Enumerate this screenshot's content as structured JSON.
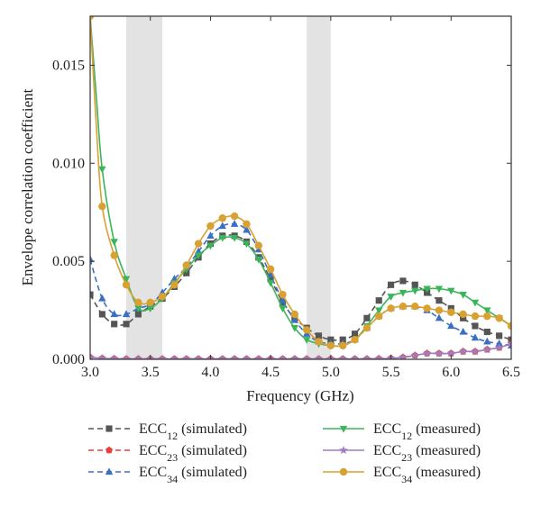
{
  "chart_data": {
    "type": "line",
    "xlabel": "Frequency (GHz)",
    "ylabel": "Envelope correlation coefficient",
    "xlim": [
      3.0,
      6.5
    ],
    "ylim": [
      0.0,
      0.0175
    ],
    "x_ticks": [
      3.0,
      3.5,
      4.0,
      4.5,
      5.0,
      5.5,
      6.0,
      6.5
    ],
    "x_tick_labels": [
      "3.0",
      "3.5",
      "4.0",
      "4.5",
      "5.0",
      "5.5",
      "6.0",
      "6.5"
    ],
    "y_ticks": [
      0.0,
      0.005,
      0.01,
      0.015
    ],
    "y_tick_labels": [
      "0.000",
      "0.005",
      "0.010",
      "0.015"
    ],
    "shaded_bands": [
      [
        3.3,
        3.6
      ],
      [
        4.8,
        5.0
      ]
    ],
    "legend_position": "bottom",
    "series": [
      {
        "name": "ECC12 (simulated)",
        "legend_base": "ECC",
        "legend_sub": "12",
        "legend_suffix": " (simulated)",
        "color": "#555555",
        "marker": "square",
        "dashed": true,
        "x": [
          3.0,
          3.1,
          3.2,
          3.3,
          3.4,
          3.5,
          3.6,
          3.7,
          3.8,
          3.9,
          4.0,
          4.1,
          4.2,
          4.3,
          4.4,
          4.5,
          4.6,
          4.7,
          4.8,
          4.9,
          5.0,
          5.1,
          5.2,
          5.3,
          5.4,
          5.5,
          5.6,
          5.7,
          5.8,
          5.9,
          6.0,
          6.1,
          6.2,
          6.3,
          6.4,
          6.5
        ],
        "y": [
          0.0033,
          0.0023,
          0.0018,
          0.0018,
          0.0023,
          0.0027,
          0.0031,
          0.0037,
          0.0044,
          0.0052,
          0.0059,
          0.0063,
          0.0063,
          0.006,
          0.0052,
          0.0041,
          0.0029,
          0.0021,
          0.0016,
          0.0012,
          0.001,
          0.001,
          0.0013,
          0.0021,
          0.003,
          0.0038,
          0.004,
          0.0038,
          0.0034,
          0.003,
          0.0026,
          0.0021,
          0.0017,
          0.0014,
          0.0012,
          0.001
        ]
      },
      {
        "name": "ECC23 (simulated)",
        "legend_base": "ECC",
        "legend_sub": "23",
        "legend_suffix": " (simulated)",
        "color": "#e8413c",
        "marker": "pentagon",
        "dashed": true,
        "x": [
          3.0,
          3.1,
          3.2,
          3.3,
          3.4,
          3.5,
          3.6,
          3.7,
          3.8,
          3.9,
          4.0,
          4.1,
          4.2,
          4.3,
          4.4,
          4.5,
          4.6,
          4.7,
          4.8,
          4.9,
          5.0,
          5.1,
          5.2,
          5.3,
          5.4,
          5.5,
          5.6,
          5.7,
          5.8,
          5.9,
          6.0,
          6.1,
          6.2,
          6.3,
          6.4,
          6.5
        ],
        "y": [
          0.0001,
          5e-05,
          3e-05,
          2e-05,
          2e-05,
          2e-05,
          2e-05,
          2e-05,
          2e-05,
          2e-05,
          2e-05,
          2e-05,
          2e-05,
          2e-05,
          2e-05,
          2e-05,
          2e-05,
          2e-05,
          2e-05,
          2e-05,
          2e-05,
          2e-05,
          2e-05,
          2e-05,
          3e-05,
          5e-05,
          0.0001,
          0.0002,
          0.0003,
          0.0003,
          0.0003,
          0.0004,
          0.0004,
          0.0005,
          0.0006,
          0.0008
        ]
      },
      {
        "name": "ECC34 (simulated)",
        "legend_base": "ECC",
        "legend_sub": "34",
        "legend_suffix": " (simulated)",
        "color": "#3b6fc4",
        "marker": "triangle-up",
        "dashed": true,
        "x": [
          3.0,
          3.1,
          3.2,
          3.3,
          3.4,
          3.5,
          3.6,
          3.7,
          3.8,
          3.9,
          4.0,
          4.1,
          4.2,
          4.3,
          4.4,
          4.5,
          4.6,
          4.7,
          4.8,
          4.9,
          5.0,
          5.1,
          5.2,
          5.3,
          5.4,
          5.5,
          5.6,
          5.7,
          5.8,
          5.9,
          6.0,
          6.1,
          6.2,
          6.3,
          6.4,
          6.5
        ],
        "y": [
          0.0051,
          0.0031,
          0.0023,
          0.0023,
          0.0026,
          0.0028,
          0.0034,
          0.0041,
          0.0047,
          0.0055,
          0.0063,
          0.0068,
          0.0069,
          0.0066,
          0.0056,
          0.0043,
          0.003,
          0.002,
          0.0013,
          0.0009,
          0.0008,
          0.0008,
          0.001,
          0.0016,
          0.0022,
          0.0026,
          0.0027,
          0.0027,
          0.0025,
          0.0021,
          0.0017,
          0.0014,
          0.0011,
          0.0009,
          0.0008,
          0.0007
        ]
      },
      {
        "name": "ECC12 (measured)",
        "legend_base": "ECC",
        "legend_sub": "12",
        "legend_suffix": " (measured)",
        "color": "#3bb55a",
        "marker": "triangle-down",
        "dashed": false,
        "x": [
          3.0,
          3.05,
          3.1,
          3.2,
          3.3,
          3.4,
          3.5,
          3.6,
          3.7,
          3.8,
          3.9,
          4.0,
          4.1,
          4.2,
          4.3,
          4.4,
          4.5,
          4.6,
          4.7,
          4.8,
          4.9,
          5.0,
          5.1,
          5.2,
          5.3,
          5.4,
          5.5,
          5.6,
          5.7,
          5.8,
          5.9,
          6.0,
          6.1,
          6.2,
          6.3,
          6.4,
          6.5
        ],
        "y": [
          0.0175,
          0.0135,
          0.0097,
          0.006,
          0.0041,
          0.0026,
          0.0026,
          0.0031,
          0.0039,
          0.0046,
          0.0053,
          0.0058,
          0.0062,
          0.0062,
          0.0059,
          0.0051,
          0.0039,
          0.0026,
          0.0016,
          0.001,
          0.0008,
          0.0007,
          0.0007,
          0.001,
          0.0017,
          0.0025,
          0.0032,
          0.0034,
          0.0035,
          0.0036,
          0.0036,
          0.0035,
          0.0033,
          0.0029,
          0.0025,
          0.0021,
          0.0017
        ]
      },
      {
        "name": "ECC23 (measured)",
        "legend_base": "ECC",
        "legend_sub": "23",
        "legend_suffix": " (measured)",
        "color": "#a07cc0",
        "marker": "star",
        "dashed": false,
        "x": [
          3.0,
          3.1,
          3.2,
          3.3,
          3.4,
          3.5,
          3.6,
          3.7,
          3.8,
          3.9,
          4.0,
          4.1,
          4.2,
          4.3,
          4.4,
          4.5,
          4.6,
          4.7,
          4.8,
          4.9,
          5.0,
          5.1,
          5.2,
          5.3,
          5.4,
          5.5,
          5.6,
          5.7,
          5.8,
          5.9,
          6.0,
          6.1,
          6.2,
          6.3,
          6.4,
          6.5
        ],
        "y": [
          0.0001,
          5e-05,
          3e-05,
          2e-05,
          2e-05,
          2e-05,
          2e-05,
          2e-05,
          2e-05,
          2e-05,
          2e-05,
          2e-05,
          2e-05,
          2e-05,
          2e-05,
          2e-05,
          2e-05,
          2e-05,
          2e-05,
          2e-05,
          2e-05,
          2e-05,
          2e-05,
          2e-05,
          3e-05,
          5e-05,
          0.0001,
          0.0002,
          0.0003,
          0.0003,
          0.0003,
          0.0004,
          0.0004,
          0.0005,
          0.0006,
          0.0008
        ]
      },
      {
        "name": "ECC34 (measured)",
        "legend_base": "ECC",
        "legend_sub": "34",
        "legend_suffix": " (measured)",
        "color": "#d9a032",
        "marker": "circle",
        "dashed": false,
        "x": [
          3.0,
          3.05,
          3.1,
          3.2,
          3.3,
          3.4,
          3.5,
          3.6,
          3.7,
          3.8,
          3.9,
          4.0,
          4.1,
          4.2,
          4.3,
          4.4,
          4.5,
          4.6,
          4.7,
          4.8,
          4.9,
          5.0,
          5.1,
          5.2,
          5.3,
          5.4,
          5.5,
          5.6,
          5.7,
          5.8,
          5.9,
          6.0,
          6.1,
          6.2,
          6.3,
          6.4,
          6.5
        ],
        "y": [
          0.0175,
          0.012,
          0.0078,
          0.0053,
          0.0038,
          0.0029,
          0.0029,
          0.0032,
          0.0038,
          0.0048,
          0.0059,
          0.0068,
          0.0072,
          0.0073,
          0.0069,
          0.0058,
          0.0046,
          0.0033,
          0.0023,
          0.0015,
          0.0009,
          0.0007,
          0.0007,
          0.001,
          0.0016,
          0.0022,
          0.0026,
          0.0027,
          0.0027,
          0.0026,
          0.0025,
          0.0024,
          0.0023,
          0.0022,
          0.0022,
          0.0021,
          0.0017
        ]
      }
    ]
  }
}
